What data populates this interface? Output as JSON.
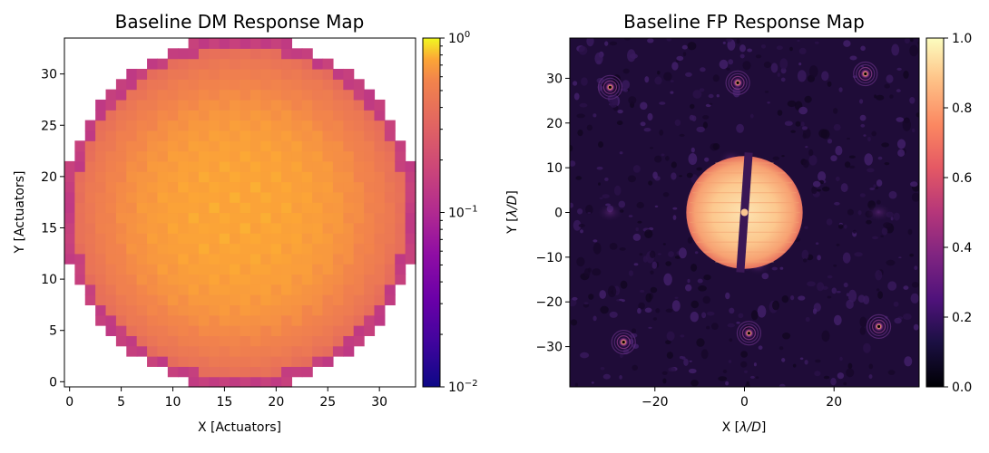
{
  "chart_data": [
    {
      "type": "heatmap",
      "title": "Baseline DM Response Map",
      "xlabel": "X [Actuators]",
      "ylabel": "Y [Actuators]",
      "xlim": [
        -0.5,
        33.5
      ],
      "ylim": [
        -0.5,
        33.5
      ],
      "xticks": [
        0,
        5,
        10,
        15,
        20,
        25,
        30
      ],
      "yticks": [
        0,
        5,
        10,
        15,
        20,
        25,
        30
      ],
      "grid_size": 34,
      "aperture_radius_actuators": 17.2,
      "center_value": 0.75,
      "edge_value": 0.15,
      "colormap": "plasma",
      "colorbar": {
        "scale": "log",
        "range": [
          0.01,
          1
        ],
        "ticks": [
          {
            "value": 1,
            "base": "10",
            "exp": "0"
          },
          {
            "value": 0.1,
            "base": "10",
            "exp": "−1"
          },
          {
            "value": 0.01,
            "base": "10",
            "exp": "−2"
          }
        ]
      }
    },
    {
      "type": "heatmap",
      "title": "Baseline FP Response Map",
      "xlabel_prefix": "X [",
      "ylabel_prefix": "Y [",
      "label_unit": "λ/D",
      "label_suffix": "]",
      "xlim": [
        -39,
        39
      ],
      "ylim": [
        -39,
        39
      ],
      "xticks": [
        {
          "value": -20,
          "label": "−20"
        },
        {
          "value": 0,
          "label": "0"
        },
        {
          "value": 20,
          "label": "20"
        }
      ],
      "yticks": [
        {
          "value": 30,
          "label": "30"
        },
        {
          "value": 20,
          "label": "20"
        },
        {
          "value": 10,
          "label": "10"
        },
        {
          "value": 0,
          "label": "0"
        },
        {
          "value": -10,
          "label": "−10"
        },
        {
          "value": -20,
          "label": "−20"
        },
        {
          "value": -30,
          "label": "−30"
        }
      ],
      "colormap": "magma",
      "central_disk": {
        "x": 0,
        "y": 0,
        "radius": 13,
        "value": 0.85
      },
      "satellite_spots": [
        {
          "x": -30,
          "y": 28
        },
        {
          "x": -1.5,
          "y": 29
        },
        {
          "x": 27,
          "y": 31
        },
        {
          "x": -27,
          "y": -29
        },
        {
          "x": 1,
          "y": -27
        },
        {
          "x": 30,
          "y": -25.5
        }
      ],
      "colorbar": {
        "scale": "linear",
        "range": [
          0,
          1
        ],
        "ticks": [
          {
            "value": 1.0,
            "label": "1.0"
          },
          {
            "value": 0.8,
            "label": "0.8"
          },
          {
            "value": 0.6,
            "label": "0.6"
          },
          {
            "value": 0.4,
            "label": "0.4"
          },
          {
            "value": 0.2,
            "label": "0.2"
          },
          {
            "value": 0.0,
            "label": "0.0"
          }
        ]
      }
    }
  ]
}
